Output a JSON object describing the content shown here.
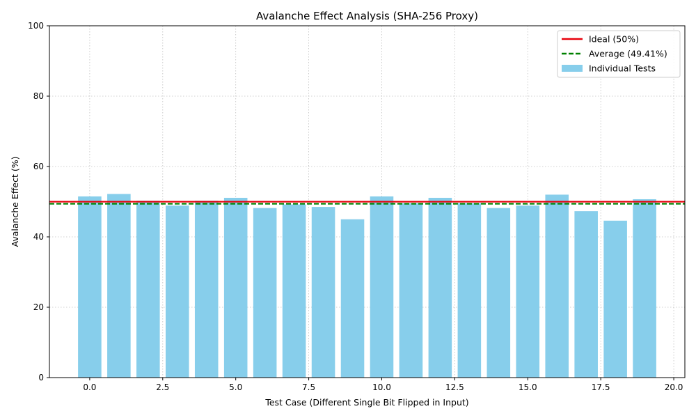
{
  "chart_data": {
    "type": "bar",
    "title": "Avalanche Effect Analysis (SHA-256 Proxy)",
    "xlabel": "Test Case (Different Single Bit Flipped in Input)",
    "ylabel": "Avalanche Effect (%)",
    "xlim": [
      -1.38,
      20.38
    ],
    "ylim": [
      0,
      100
    ],
    "xticks": [
      "0.0",
      "2.5",
      "5.0",
      "7.5",
      "10.0",
      "12.5",
      "15.0",
      "17.5",
      "20.0"
    ],
    "xtick_values": [
      0,
      2.5,
      5,
      7.5,
      10,
      12.5,
      15,
      17.5,
      20
    ],
    "yticks": [
      "0",
      "20",
      "40",
      "60",
      "80",
      "100"
    ],
    "ytick_values": [
      0,
      20,
      40,
      60,
      80,
      100
    ],
    "grid": true,
    "legend_position": "top-right",
    "x": [
      0,
      1,
      2,
      3,
      4,
      5,
      6,
      7,
      8,
      9,
      10,
      11,
      12,
      13,
      14,
      15,
      16,
      17,
      18,
      19
    ],
    "values": [
      51.5,
      52.2,
      50.3,
      48.9,
      50.3,
      51.1,
      48.2,
      49.2,
      48.5,
      45.0,
      51.5,
      49.6,
      51.1,
      49.6,
      48.2,
      48.9,
      52.0,
      47.3,
      44.6,
      50.7
    ],
    "bar_color": "#87ceeb",
    "reference_lines": [
      {
        "name": "Ideal (50%)",
        "value": 50,
        "color": "#e8000b",
        "style": "solid"
      },
      {
        "name": "Average (49.41%)",
        "value": 49.41,
        "color": "#008000",
        "style": "dashed"
      }
    ],
    "series": [
      {
        "name": "Individual Tests"
      }
    ]
  }
}
